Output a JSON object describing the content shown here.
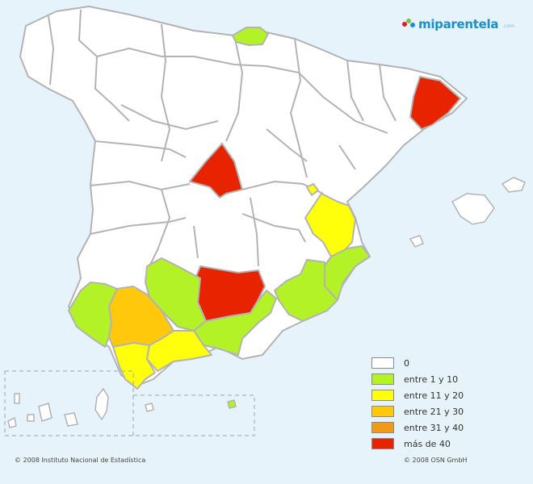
{
  "logo": {
    "text": "miparentela",
    "suffix": ".com",
    "colors": [
      "#e6192b",
      "#79c142",
      "#1a8fd0"
    ]
  },
  "legend": [
    {
      "label": "0",
      "color": "#ffffff"
    },
    {
      "label": "entre 1 y 10",
      "color": "#b2f227"
    },
    {
      "label": "entre 11 y 20",
      "color": "#ffff0c"
    },
    {
      "label": "entre 21 y 30",
      "color": "#ffc80a"
    },
    {
      "label": "entre 31 y 40",
      "color": "#f2991a"
    },
    {
      "label": "más de 40",
      "color": "#e72300"
    }
  ],
  "regions": {
    "gipuzkoa": "entre 1 y 10",
    "barcelona": "más de 40",
    "madrid": "más de 40",
    "valencia": "entre 11 y 20",
    "castellon_enclave": "entre 11 y 20",
    "alicante": "entre 1 y 10",
    "murcia": "entre 1 y 10",
    "huelva": "entre 1 y 10",
    "sevilla": "entre 21 y 30",
    "cordoba": "entre 1 y 10",
    "jaen": "más de 40",
    "granada": "entre 1 y 10",
    "cadiz": "entre 11 y 20",
    "malaga": "entre 11 y 20",
    "tenerife": "entre 1 y 10"
  },
  "credits": {
    "left": "© 2008 Instituto Nacional de Estadística",
    "right": "© 2008 OSN GmbH"
  }
}
